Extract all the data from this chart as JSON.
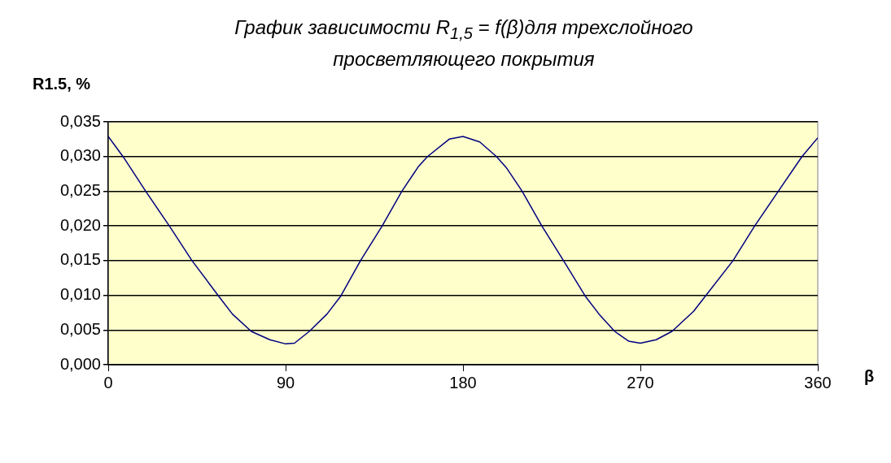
{
  "chart_data": {
    "type": "line",
    "title": "График зависимости R$_{1,5}$ = f(β)для трехслойного просветляющего покрытия",
    "ylabel": "R1.5, %",
    "xlabel": "β",
    "x": [
      0,
      7.5,
      19,
      31,
      42.5,
      56,
      63,
      72.6,
      82,
      90,
      94.5,
      102,
      111,
      118,
      128,
      139,
      149,
      157.5,
      162,
      173,
      180,
      188.5,
      197,
      202,
      210,
      220,
      231,
      242,
      249,
      257,
      264,
      270,
      278,
      286,
      297,
      303,
      317,
      328,
      340,
      352,
      360
    ],
    "series": [
      {
        "color": "#000080",
        "values": [
          0.0329,
          0.03,
          0.025,
          0.02,
          0.015,
          0.0099,
          0.0073,
          0.0048,
          0.0036,
          0.003,
          0.0031,
          0.0048,
          0.0073,
          0.0099,
          0.015,
          0.02,
          0.025,
          0.0286,
          0.03,
          0.0325,
          0.0329,
          0.0321,
          0.03,
          0.0284,
          0.025,
          0.02,
          0.015,
          0.0099,
          0.0073,
          0.0048,
          0.0034,
          0.0031,
          0.0036,
          0.0048,
          0.0077,
          0.0099,
          0.015,
          0.02,
          0.025,
          0.03,
          0.0327
        ]
      }
    ],
    "xlim": [
      0,
      360
    ],
    "xticks": [
      0,
      90,
      180,
      270,
      360
    ],
    "ylim": [
      0,
      0.035
    ],
    "yticks": [
      {
        "value": 0,
        "label": "0,000"
      },
      {
        "value": 0.005,
        "label": "0,005"
      },
      {
        "value": 0.01,
        "label": "0,010"
      },
      {
        "value": 0.015,
        "label": "0,015"
      },
      {
        "value": 0.02,
        "label": "0,020"
      },
      {
        "value": 0.025,
        "label": "0,025"
      },
      {
        "value": 0.03,
        "label": "0,030"
      },
      {
        "value": 0.035,
        "label": "0,035"
      }
    ],
    "grid": "y",
    "legend": false,
    "marker": "none",
    "line_style": "solid"
  }
}
